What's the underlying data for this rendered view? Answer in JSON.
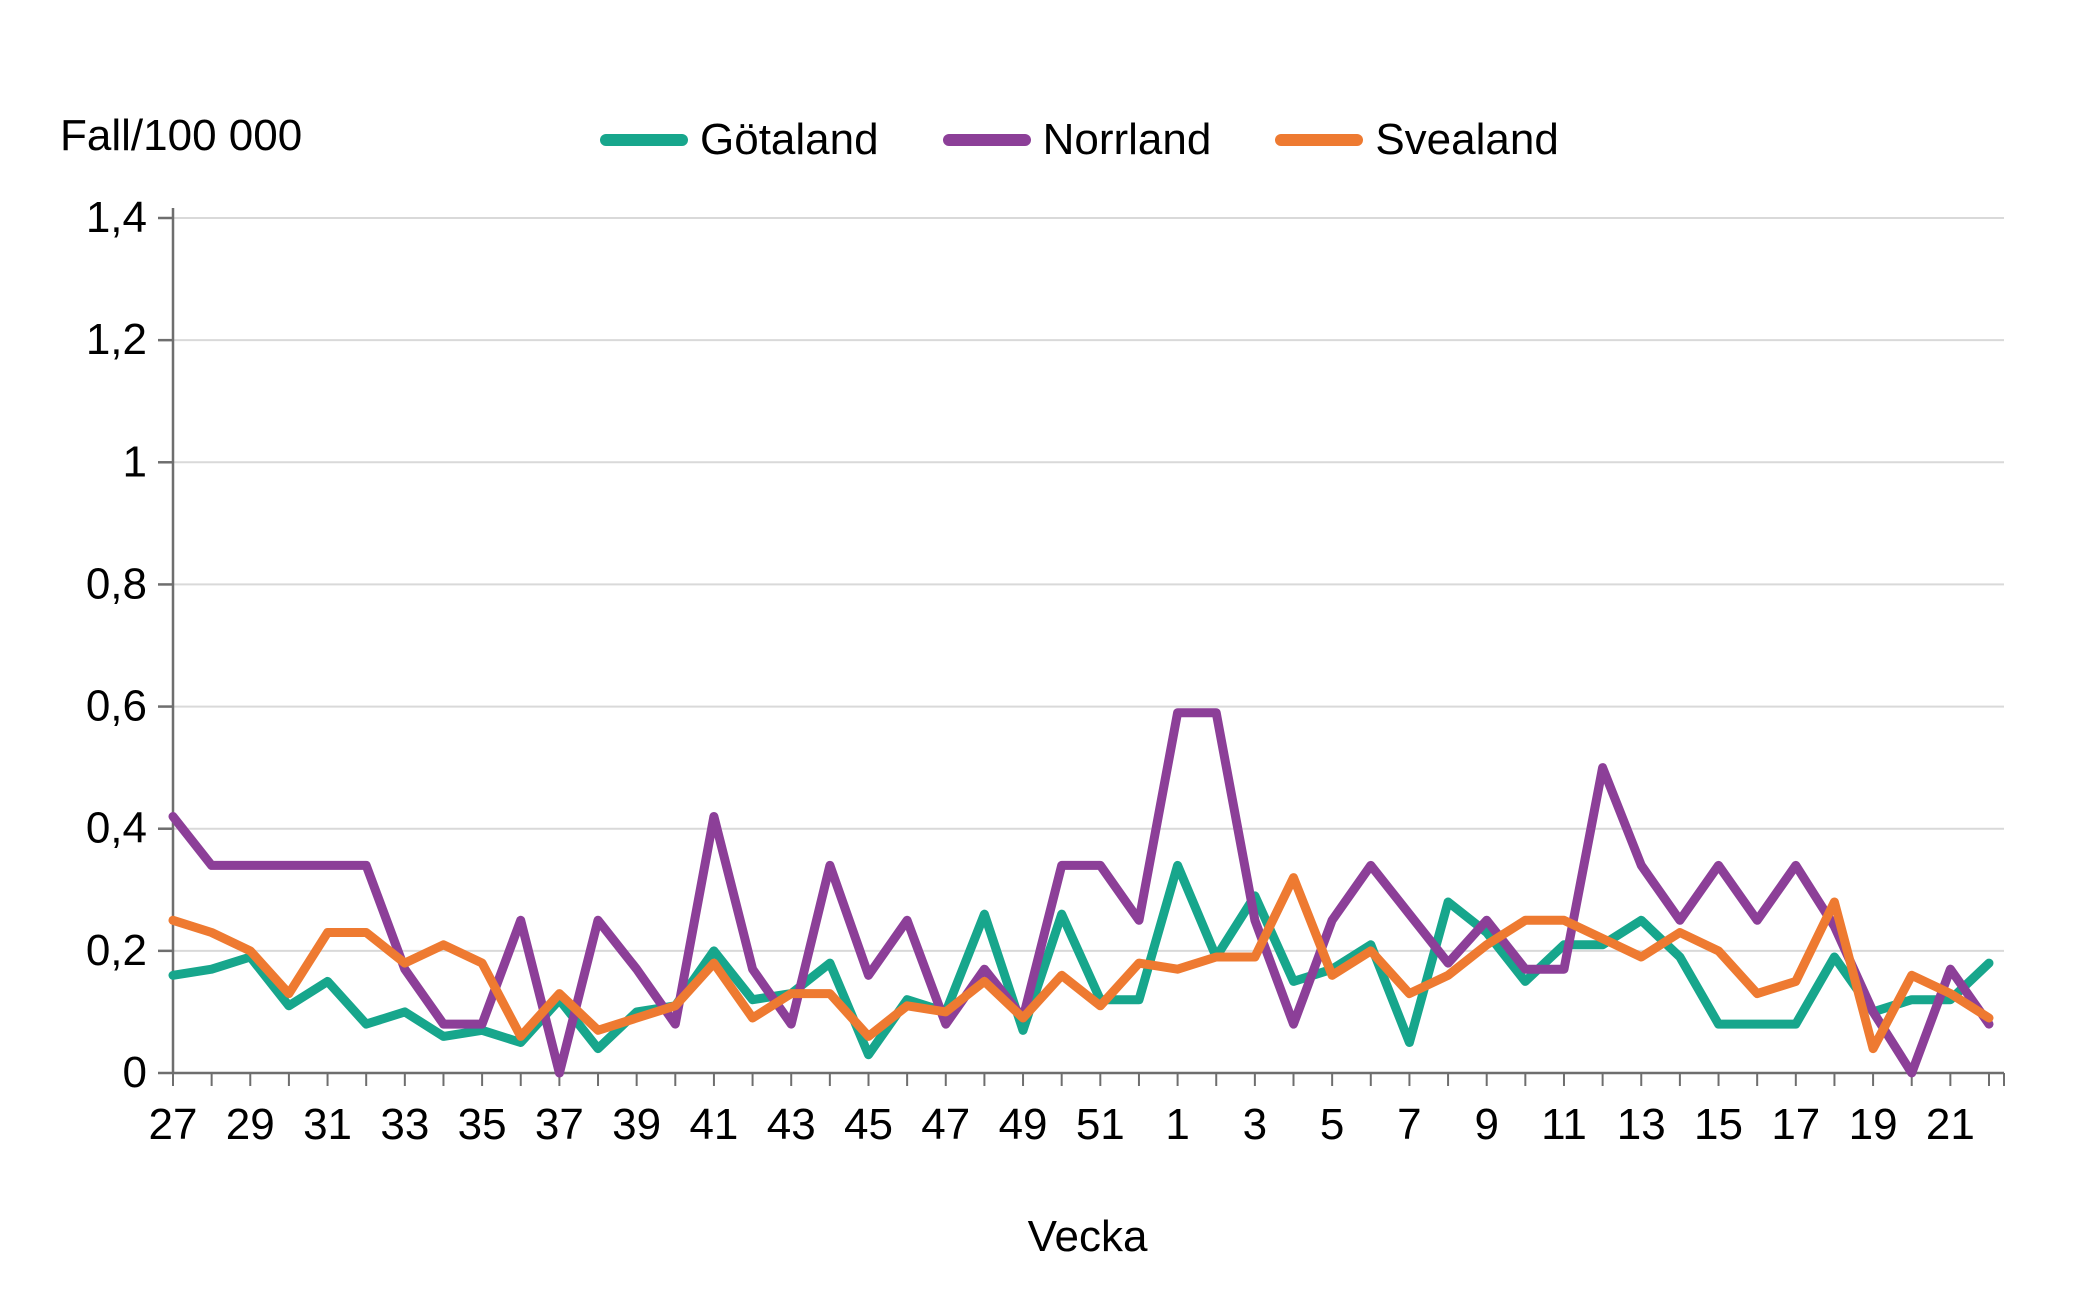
{
  "chart": {
    "title": "Fall/100 000",
    "xlabel": "Vecka"
  },
  "legend": [
    {
      "label": "Götaland",
      "color": "#17A68C"
    },
    {
      "label": "Norrland",
      "color": "#8C3F98"
    },
    {
      "label": "Svealand",
      "color": "#EE7A31"
    }
  ],
  "chart_data": {
    "type": "line",
    "title": "Fall/100 000",
    "xlabel": "Vecka",
    "ylabel": "",
    "x_categories": [
      "27",
      "28",
      "29",
      "30",
      "31",
      "32",
      "33",
      "34",
      "35",
      "36",
      "37",
      "38",
      "39",
      "40",
      "41",
      "42",
      "43",
      "44",
      "45",
      "46",
      "47",
      "48",
      "49",
      "50",
      "51",
      "52",
      "1",
      "2",
      "3",
      "4",
      "5",
      "6",
      "7",
      "8",
      "9",
      "10",
      "11",
      "12",
      "13",
      "14",
      "15",
      "16",
      "17",
      "18",
      "19",
      "20",
      "21",
      "22"
    ],
    "x_labels_shown_every": 2,
    "ylim": [
      0,
      1.4
    ],
    "ytick_step": 0.2,
    "ytick_labels": [
      "0",
      "0,2",
      "0,4",
      "0,6",
      "0,8",
      "1",
      "1,2",
      "1,4"
    ],
    "grid": "horizontal",
    "legend_position": "top",
    "series": [
      {
        "name": "Götaland",
        "color": "#17A68C",
        "values": [
          0.16,
          0.17,
          0.19,
          0.11,
          0.15,
          0.08,
          0.1,
          0.06,
          0.07,
          0.05,
          0.12,
          0.04,
          0.1,
          0.11,
          0.2,
          0.12,
          0.13,
          0.18,
          0.03,
          0.12,
          0.1,
          0.26,
          0.07,
          0.26,
          0.12,
          0.12,
          0.34,
          0.19,
          0.29,
          0.15,
          0.17,
          0.21,
          0.05,
          0.28,
          0.23,
          0.15,
          0.21,
          0.21,
          0.25,
          0.19,
          0.08,
          0.08,
          0.08,
          0.19,
          0.1,
          0.12,
          0.12,
          0.18
        ]
      },
      {
        "name": "Norrland",
        "color": "#8C3F98",
        "values": [
          0.42,
          0.34,
          0.34,
          0.34,
          0.34,
          0.34,
          0.17,
          0.08,
          0.08,
          0.25,
          0.0,
          0.25,
          0.17,
          0.08,
          0.42,
          0.17,
          0.08,
          0.34,
          0.16,
          0.25,
          0.08,
          0.17,
          0.09,
          0.34,
          0.34,
          0.25,
          0.59,
          0.59,
          0.25,
          0.08,
          0.25,
          0.34,
          0.26,
          0.18,
          0.25,
          0.17,
          0.17,
          0.5,
          0.34,
          0.25,
          0.34,
          0.25,
          0.34,
          0.24,
          0.1,
          0.0,
          0.17,
          0.08
        ]
      },
      {
        "name": "Svealand",
        "color": "#EE7A31",
        "values": [
          0.25,
          0.23,
          0.2,
          0.13,
          0.23,
          0.23,
          0.18,
          0.21,
          0.18,
          0.06,
          0.13,
          0.07,
          0.09,
          0.11,
          0.18,
          0.09,
          0.13,
          0.13,
          0.06,
          0.11,
          0.1,
          0.15,
          0.09,
          0.16,
          0.11,
          0.18,
          0.17,
          0.19,
          0.19,
          0.32,
          0.16,
          0.2,
          0.13,
          0.16,
          0.21,
          0.25,
          0.25,
          0.22,
          0.19,
          0.23,
          0.2,
          0.13,
          0.15,
          0.28,
          0.04,
          0.16,
          0.13,
          0.09
        ]
      }
    ],
    "style": {
      "line_width": 9,
      "grid_color": "#D9D9D9",
      "axis_color": "#6E6E6E",
      "tick_font_size": 40
    }
  }
}
